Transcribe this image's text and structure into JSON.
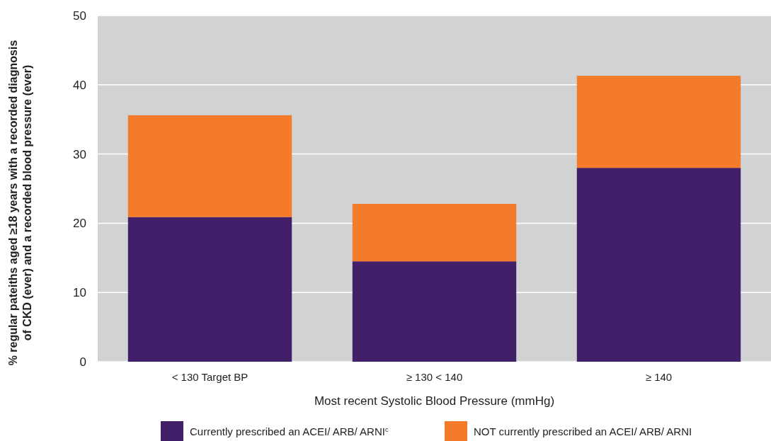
{
  "chart_data": {
    "type": "bar",
    "stacked": true,
    "xlabel": "Most recent Systolic Blood Pressure (mmHg)",
    "ylabel": "% regular pateiths aged ≥18 years with a recorded diagnosis\nof CKD (ever) and  a recorded  blood pressure (ever)",
    "categories": [
      "< 130 Target BP",
      "≥ 130 < 140",
      "≥ 140"
    ],
    "series": [
      {
        "name": "Currently prescribed an ACEI/ ARB/ ARNI$^{c}$",
        "color": "#421f69",
        "values": [
          20.9,
          14.5,
          28.0
        ]
      },
      {
        "name": "NOT currently prescribed an ACEI/ ARB/ ARNI",
        "color": "#f47b2a",
        "values": [
          14.7,
          8.3,
          13.3
        ]
      }
    ],
    "ylim": [
      0,
      50
    ],
    "yticks": [
      0,
      10,
      20,
      30,
      40,
      50
    ],
    "grid": "y",
    "legend": "bottom"
  }
}
